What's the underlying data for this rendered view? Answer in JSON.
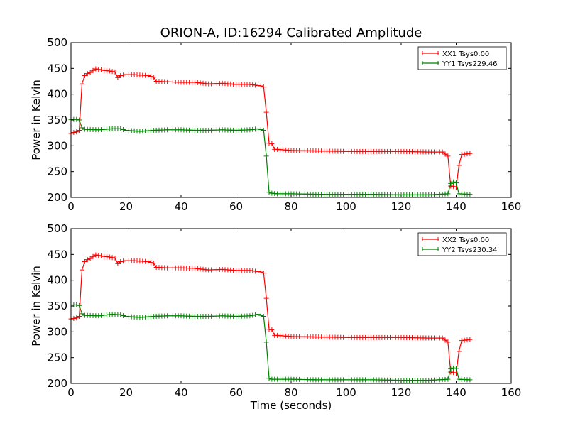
{
  "figure_title": "ORION-A, ID:16294 Calibrated Amplitude",
  "chart_data": [
    {
      "type": "line",
      "title": "ORION-A, ID:16294 Calibrated Amplitude",
      "xlabel": "",
      "ylabel": "Power in Kelvin",
      "xlim": [
        0,
        160
      ],
      "ylim": [
        200,
        500
      ],
      "xticks": [
        "0",
        "20",
        "40",
        "60",
        "80",
        "100",
        "120",
        "140",
        "160"
      ],
      "yticks": [
        "200",
        "250",
        "300",
        "350",
        "400",
        "450",
        "500"
      ],
      "legend_position": "top-right",
      "series": [
        {
          "name": "XX1 Tsys0.00",
          "color": "#ff0000",
          "x": [
            0,
            1,
            2,
            3,
            4,
            5,
            6,
            7,
            8,
            9,
            10,
            12,
            14,
            16,
            17,
            18,
            20,
            22,
            25,
            28,
            30,
            31,
            35,
            40,
            45,
            50,
            55,
            60,
            65,
            69,
            70,
            71,
            72,
            73,
            74,
            75,
            80,
            90,
            100,
            110,
            120,
            130,
            135,
            137,
            138,
            139,
            140,
            141,
            142,
            145
          ],
          "y": [
            324,
            326,
            327,
            330,
            420,
            436,
            440,
            442,
            446,
            449,
            448,
            446,
            445,
            443,
            432,
            436,
            438,
            438,
            437,
            436,
            433,
            425,
            424,
            423,
            423,
            420,
            421,
            419,
            419,
            416,
            414,
            365,
            305,
            304,
            293,
            293,
            291,
            290,
            289,
            289,
            289,
            288,
            288,
            280,
            222,
            221,
            220,
            262,
            283,
            285
          ]
        },
        {
          "name": "YY1 Tsys229.46",
          "color": "#008000",
          "x": [
            0,
            2,
            3,
            4,
            5,
            10,
            15,
            18,
            20,
            25,
            30,
            35,
            40,
            45,
            50,
            55,
            60,
            65,
            68,
            70,
            71,
            72,
            73,
            75,
            80,
            90,
            100,
            110,
            120,
            130,
            137,
            138,
            139,
            140,
            141,
            145
          ],
          "y": [
            351,
            351,
            350,
            335,
            332,
            331,
            333,
            333,
            330,
            328,
            330,
            331,
            331,
            330,
            330,
            331,
            330,
            331,
            333,
            330,
            280,
            210,
            208,
            207,
            207,
            206,
            206,
            206,
            205,
            205,
            207,
            227,
            230,
            228,
            207,
            206
          ]
        }
      ]
    },
    {
      "type": "line",
      "title": "",
      "xlabel": "Time (seconds)",
      "ylabel": "Power in Kelvin",
      "xlim": [
        0,
        160
      ],
      "ylim": [
        200,
        500
      ],
      "xticks": [
        "0",
        "20",
        "40",
        "60",
        "80",
        "100",
        "120",
        "140",
        "160"
      ],
      "yticks": [
        "200",
        "250",
        "300",
        "350",
        "400",
        "450",
        "500"
      ],
      "legend_position": "top-right",
      "series": [
        {
          "name": "XX2 Tsys0.00",
          "color": "#ff0000",
          "x": [
            0,
            1,
            2,
            3,
            4,
            5,
            6,
            7,
            8,
            9,
            10,
            12,
            14,
            16,
            17,
            18,
            20,
            22,
            25,
            28,
            30,
            31,
            35,
            40,
            45,
            50,
            55,
            60,
            65,
            69,
            70,
            71,
            72,
            73,
            74,
            75,
            80,
            90,
            100,
            110,
            120,
            130,
            135,
            137,
            138,
            139,
            140,
            141,
            142,
            145
          ],
          "y": [
            325,
            326,
            327,
            330,
            420,
            436,
            440,
            442,
            446,
            449,
            448,
            446,
            445,
            443,
            432,
            436,
            438,
            438,
            437,
            436,
            433,
            425,
            424,
            424,
            423,
            420,
            421,
            419,
            419,
            416,
            414,
            365,
            305,
            304,
            293,
            293,
            291,
            290,
            289,
            289,
            289,
            288,
            288,
            280,
            222,
            221,
            220,
            262,
            283,
            285
          ]
        },
        {
          "name": "YY2 Tsys230.34",
          "color": "#008000",
          "x": [
            0,
            2,
            3,
            4,
            5,
            10,
            15,
            18,
            20,
            25,
            30,
            35,
            40,
            45,
            50,
            55,
            60,
            65,
            68,
            70,
            71,
            72,
            73,
            75,
            80,
            90,
            100,
            110,
            120,
            130,
            137,
            138,
            139,
            140,
            141,
            145
          ],
          "y": [
            352,
            352,
            351,
            335,
            332,
            331,
            334,
            333,
            330,
            328,
            330,
            331,
            331,
            330,
            330,
            331,
            330,
            331,
            334,
            330,
            280,
            210,
            208,
            208,
            208,
            207,
            207,
            207,
            206,
            206,
            208,
            228,
            230,
            229,
            208,
            207
          ]
        }
      ]
    }
  ]
}
